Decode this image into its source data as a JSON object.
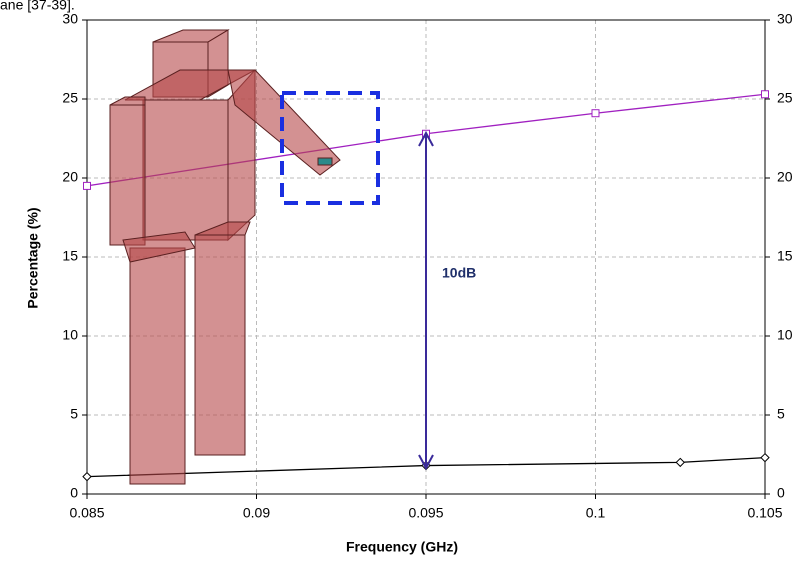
{
  "caption": "ane [37-39].",
  "chart_data": {
    "type": "line",
    "xlabel": "Frequency (GHz)",
    "ylabel": "Percentage (%)",
    "annotation": "10dB",
    "xlim": [
      0.085,
      0.105
    ],
    "xticks": [
      0.085,
      0.09,
      0.095,
      0.1,
      0.105
    ],
    "ylim": [
      0,
      30
    ],
    "yticks": [
      0,
      5,
      10,
      15,
      20,
      25,
      30
    ],
    "y2lim": [
      0,
      30
    ],
    "y2ticks": [
      0,
      5,
      10,
      15,
      20,
      25,
      30
    ],
    "grid": true,
    "series": [
      {
        "color": "#a020c0",
        "marker": "square",
        "x": [
          0.085,
          0.095,
          0.1,
          0.105
        ],
        "values": [
          19.5,
          22.8,
          24.1,
          25.3
        ]
      },
      {
        "color": "#000000",
        "marker": "diamond",
        "x": [
          0.085,
          0.095,
          0.1025,
          0.105
        ],
        "values": [
          1.1,
          1.8,
          2.0,
          2.3
        ]
      }
    ]
  }
}
